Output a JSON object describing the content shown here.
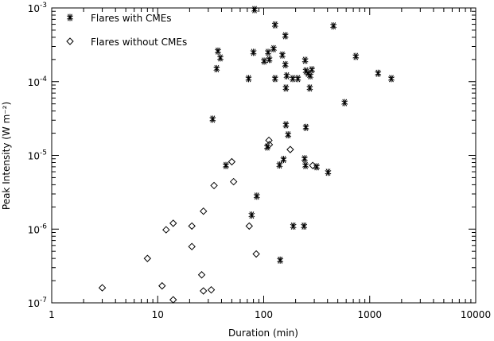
{
  "chart_data": {
    "type": "scatter",
    "title": "",
    "xlabel": "Duration (min)",
    "ylabel": "Peak Intensity (W m⁻²)",
    "xscale": "log",
    "yscale": "log",
    "xlim": [
      1,
      10000
    ],
    "ylim": [
      1e-07,
      0.001
    ],
    "grid": false,
    "legend_position": "top-left",
    "xtick_labels": [
      "1",
      "10",
      "100",
      "1000",
      "10000"
    ],
    "ytick_labels": [
      {
        "base": "10",
        "exp": "-7"
      },
      {
        "base": "10",
        "exp": "-6"
      },
      {
        "base": "10",
        "exp": "-5"
      },
      {
        "base": "10",
        "exp": "-4"
      },
      {
        "base": "10",
        "exp": "-3"
      }
    ],
    "series": [
      {
        "name": "Flares with CMEs",
        "marker": "asterisk",
        "color": "#000000",
        "points": [
          [
            82,
            0.00095
          ],
          [
            128,
            0.00059
          ],
          [
            455,
            0.00057
          ],
          [
            160,
            0.00042
          ],
          [
            37,
            0.00026
          ],
          [
            80,
            0.00025
          ],
          [
            110,
            0.00025
          ],
          [
            124,
            0.00028
          ],
          [
            39,
            0.00021
          ],
          [
            101,
            0.00019
          ],
          [
            113,
            0.0002
          ],
          [
            150,
            0.00023
          ],
          [
            246,
            0.000195
          ],
          [
            740,
            0.00022
          ],
          [
            36,
            0.00015
          ],
          [
            72,
            0.00011
          ],
          [
            128,
            0.00011
          ],
          [
            160,
            0.00017
          ],
          [
            165,
            0.00012
          ],
          [
            188,
            0.00011
          ],
          [
            210,
            0.00011
          ],
          [
            250,
            0.00014
          ],
          [
            262,
            0.00013
          ],
          [
            275,
            0.00012
          ],
          [
            285,
            0.000145
          ],
          [
            1200,
            0.00013
          ],
          [
            1600,
            0.00011
          ],
          [
            162,
            8.2e-05
          ],
          [
            272,
            8.2e-05
          ],
          [
            580,
            5.2e-05
          ],
          [
            33,
            3.1e-05
          ],
          [
            162,
            2.6e-05
          ],
          [
            250,
            2.4e-05
          ],
          [
            170,
            1.9e-05
          ],
          [
            108,
            1.3e-05
          ],
          [
            154,
            8.8e-06
          ],
          [
            141,
            7.4e-06
          ],
          [
            243,
            9e-06
          ],
          [
            248,
            7.3e-06
          ],
          [
            316,
            7e-06
          ],
          [
            405,
            5.9e-06
          ],
          [
            44,
            7.3e-06
          ],
          [
            86,
            2.8e-06
          ],
          [
            77,
            1.55e-06
          ],
          [
            190,
            1.1e-06
          ],
          [
            240,
            1.1e-06
          ],
          [
            143,
            3.8e-07
          ]
        ]
      },
      {
        "name": "Flares without CMEs",
        "marker": "diamond",
        "color": "#000000",
        "points": [
          [
            3,
            1.6e-07
          ],
          [
            8,
            4e-07
          ],
          [
            11,
            1.7e-07
          ],
          [
            12,
            9.8e-07
          ],
          [
            14,
            1.2e-06
          ],
          [
            14,
            1.1e-07
          ],
          [
            21,
            1.1e-06
          ],
          [
            21,
            5.8e-07
          ],
          [
            26,
            2.4e-07
          ],
          [
            27,
            1.45e-07
          ],
          [
            27,
            1.75e-06
          ],
          [
            32,
            1.5e-07
          ],
          [
            34,
            3.9e-06
          ],
          [
            50,
            8.2e-06
          ],
          [
            52,
            4.4e-06
          ],
          [
            73,
            1.1e-06
          ],
          [
            85,
            4.6e-07
          ],
          [
            112,
            1.6e-05
          ],
          [
            113,
            1.4e-05
          ],
          [
            178,
            1.2e-05
          ],
          [
            290,
            7.3e-06
          ]
        ]
      }
    ]
  }
}
